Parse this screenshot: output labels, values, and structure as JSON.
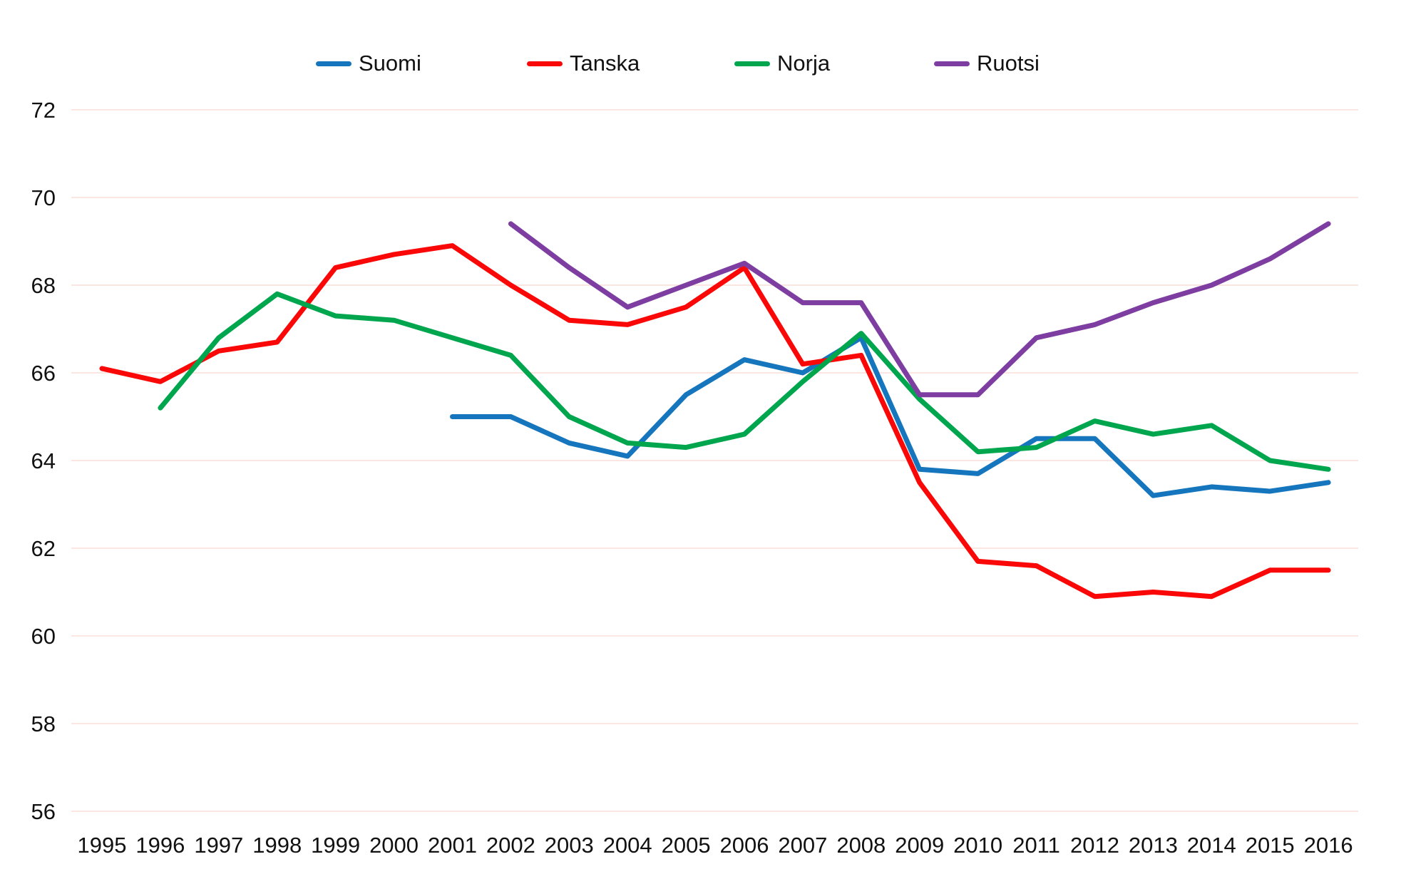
{
  "chart_data": {
    "type": "line",
    "title": "",
    "xlabel": "",
    "ylabel": "",
    "x": [
      1995,
      1996,
      1997,
      1998,
      1999,
      2000,
      2001,
      2002,
      2003,
      2004,
      2005,
      2006,
      2007,
      2008,
      2009,
      2010,
      2011,
      2012,
      2013,
      2014,
      2015,
      2016
    ],
    "ylim": [
      56,
      72
    ],
    "ytick_step": 2,
    "grid": "horizontal",
    "legend_position": "top",
    "series": [
      {
        "name": "Suomi",
        "color": "#1576bd",
        "values": [
          null,
          null,
          null,
          null,
          null,
          null,
          65.0,
          65.0,
          64.4,
          64.1,
          65.5,
          66.3,
          66.0,
          66.8,
          63.8,
          63.7,
          64.5,
          64.5,
          63.2,
          63.4,
          63.3,
          63.5
        ]
      },
      {
        "name": "Tanska",
        "color": "#fa0707",
        "values": [
          66.1,
          65.8,
          66.5,
          66.7,
          68.4,
          68.7,
          68.9,
          68.0,
          67.2,
          67.1,
          67.5,
          68.4,
          66.2,
          66.4,
          63.5,
          61.7,
          61.6,
          60.9,
          61.0,
          60.9,
          61.5,
          61.5
        ]
      },
      {
        "name": "Norja",
        "color": "#00a64e",
        "values": [
          null,
          65.2,
          66.8,
          67.8,
          67.3,
          67.2,
          66.8,
          66.4,
          65.0,
          64.4,
          64.3,
          64.6,
          65.8,
          66.9,
          65.4,
          64.2,
          64.3,
          64.9,
          64.6,
          64.8,
          64.0,
          63.8
        ]
      },
      {
        "name": "Ruotsi",
        "color": "#7d3da1",
        "values": [
          null,
          null,
          null,
          null,
          null,
          null,
          null,
          69.4,
          68.4,
          67.5,
          68.0,
          68.5,
          67.6,
          67.6,
          65.5,
          65.5,
          66.8,
          67.1,
          67.6,
          68.0,
          68.6,
          69.4
        ]
      }
    ]
  },
  "colors": {
    "grid": "#fce6e2",
    "text": "#111111",
    "background": "#ffffff"
  }
}
